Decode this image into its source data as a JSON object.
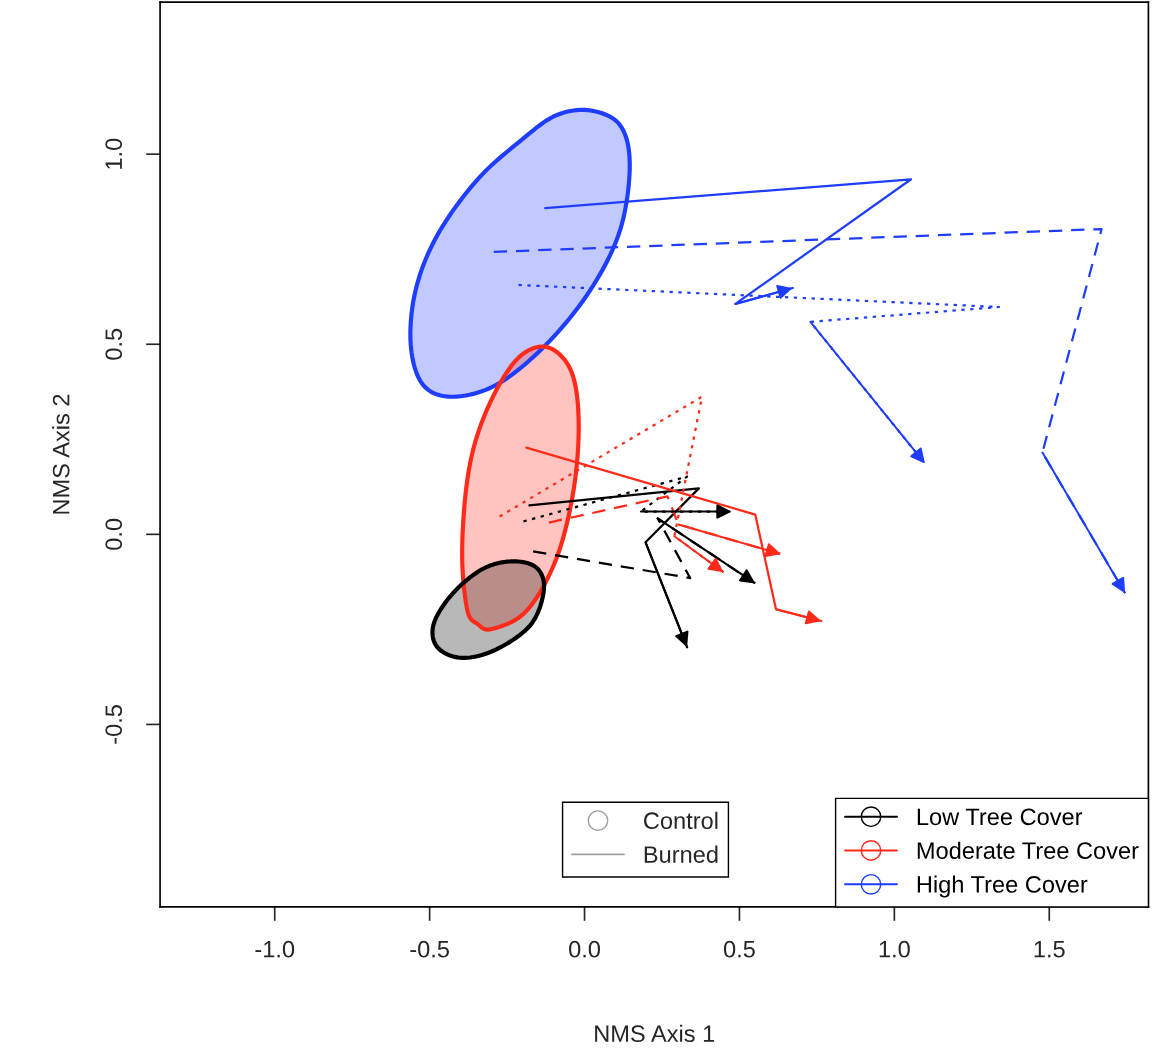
{
  "chart_data": {
    "type": "line",
    "xlabel": "NMS Axis 1",
    "ylabel": "NMS Axis 2",
    "xlim": [
      -1.37,
      1.82
    ],
    "ylim": [
      -0.98,
      1.4
    ],
    "xticks": [
      {
        "value": -1.0,
        "label": "-1.0"
      },
      {
        "value": -0.5,
        "label": "-0.5"
      },
      {
        "value": 0.0,
        "label": "0.0"
      },
      {
        "value": 0.5,
        "label": "0.5"
      },
      {
        "value": 1.0,
        "label": "1.0"
      },
      {
        "value": 1.5,
        "label": "1.5"
      }
    ],
    "yticks": [
      {
        "value": -0.5,
        "label": "-0.5"
      },
      {
        "value": 0.0,
        "label": "0.0"
      },
      {
        "value": 0.5,
        "label": "0.5"
      },
      {
        "value": 1.0,
        "label": "1.0"
      }
    ],
    "grid": false,
    "legend": "bottom right",
    "marker": "none",
    "annotations": [
      "Control",
      "Burned"
    ],
    "series": [
      {
        "type": "area",
        "color": "#1f3dff",
        "x": [
          0.019,
          0.115,
          0.146,
          0.115,
          0.019,
          -0.124,
          -0.283,
          -0.427,
          -0.522,
          -0.561,
          -0.545,
          -0.475,
          -0.347,
          -0.204,
          -0.092,
          0.019
        ],
        "values": [
          1.115,
          1.076,
          0.971,
          0.801,
          0.643,
          0.499,
          0.394,
          0.362,
          0.394,
          0.499,
          0.643,
          0.787,
          0.932,
          1.037,
          1.102,
          1.115
        ]
      },
      {
        "type": "area",
        "color": "#ff2a1a",
        "x": [
          -0.124,
          -0.045,
          -0.019,
          -0.035,
          -0.092,
          -0.188,
          -0.299,
          -0.345,
          -0.379,
          -0.395,
          -0.373,
          -0.315,
          -0.22,
          -0.124
        ],
        "values": [
          0.493,
          0.433,
          0.302,
          0.118,
          -0.066,
          -0.202,
          -0.249,
          -0.236,
          -0.197,
          -0.039,
          0.171,
          0.328,
          0.459,
          0.493
        ]
      },
      {
        "type": "area",
        "color": "#000000",
        "x": [
          -0.236,
          -0.156,
          -0.131,
          -0.172,
          -0.283,
          -0.395,
          -0.475,
          -0.487,
          -0.427,
          -0.331,
          -0.236
        ],
        "values": [
          -0.071,
          -0.087,
          -0.144,
          -0.236,
          -0.302,
          -0.325,
          -0.297,
          -0.236,
          -0.157,
          -0.092,
          -0.071
        ]
      },
      {
        "name": "Low Tree Cover",
        "color": "#000000",
        "line_style": "solid",
        "x": [
          -0.178,
          0.369,
          0.197,
          0.331
        ],
        "values": [
          0.076,
          0.121,
          -0.021,
          -0.297
        ]
      },
      {
        "color": "#000000",
        "line_style": "dashed",
        "x": [
          -0.166,
          0.341,
          0.236,
          0.551
        ],
        "values": [
          -0.045,
          -0.115,
          0.042,
          -0.129
        ]
      },
      {
        "color": "#000000",
        "line_style": "dotted",
        "x": [
          -0.197,
          0.331,
          0.182,
          0.475
        ],
        "values": [
          0.034,
          0.152,
          0.06,
          0.06
        ]
      },
      {
        "name": "Moderate Tree Cover",
        "color": "#ff2a1a",
        "line_style": "solid",
        "x": [
          -0.188,
          0.551,
          0.618,
          0.764
        ],
        "values": [
          0.228,
          0.052,
          -0.197,
          -0.228
        ]
      },
      {
        "color": "#ff2a1a",
        "line_style": "dashed",
        "x": [
          -0.115,
          0.268,
          0.303,
          0.634
        ],
        "values": [
          0.031,
          0.1,
          0.026,
          -0.052
        ]
      },
      {
        "color": "#ff2a1a",
        "line_style": "dotted",
        "x": [
          -0.274,
          0.379,
          0.29,
          0.449
        ],
        "values": [
          0.047,
          0.362,
          -0.005,
          -0.1
        ]
      },
      {
        "name": "High Tree Cover",
        "color": "#1f3dff",
        "line_style": "solid",
        "x": [
          -0.127,
          1.054,
          0.487,
          0.672
        ],
        "values": [
          0.858,
          0.934,
          0.606,
          0.648
        ]
      },
      {
        "color": "#1f3dff",
        "line_style": "dashed",
        "x": [
          -0.293,
          1.669,
          1.478,
          1.745
        ],
        "values": [
          0.743,
          0.803,
          0.215,
          -0.155
        ]
      },
      {
        "color": "#1f3dff",
        "line_style": "dotted",
        "x": [
          -0.213,
          1.338,
          0.729,
          1.099
        ],
        "values": [
          0.656,
          0.598,
          0.559,
          0.186
        ]
      }
    ]
  }
}
